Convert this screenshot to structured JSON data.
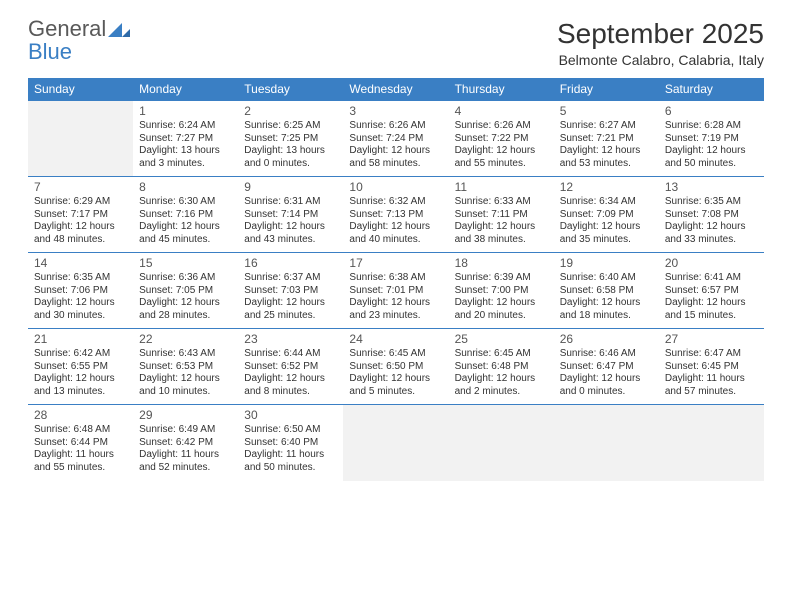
{
  "logo": {
    "general": "General",
    "blue": "Blue"
  },
  "header": {
    "month_title": "September 2025",
    "location": "Belmonte Calabro, Calabria, Italy"
  },
  "colors": {
    "header_bg": "#3a7fc4",
    "header_text": "#ffffff",
    "cell_border": "#3a7fc4",
    "empty_bg": "#f2f2f2",
    "body_text": "#333333",
    "logo_gray": "#595959",
    "logo_blue": "#3a7fc4"
  },
  "weekdays": [
    "Sunday",
    "Monday",
    "Tuesday",
    "Wednesday",
    "Thursday",
    "Friday",
    "Saturday"
  ],
  "weeks": [
    [
      null,
      {
        "day": "1",
        "sunrise": "Sunrise: 6:24 AM",
        "sunset": "Sunset: 7:27 PM",
        "d1": "Daylight: 13 hours",
        "d2": "and 3 minutes."
      },
      {
        "day": "2",
        "sunrise": "Sunrise: 6:25 AM",
        "sunset": "Sunset: 7:25 PM",
        "d1": "Daylight: 13 hours",
        "d2": "and 0 minutes."
      },
      {
        "day": "3",
        "sunrise": "Sunrise: 6:26 AM",
        "sunset": "Sunset: 7:24 PM",
        "d1": "Daylight: 12 hours",
        "d2": "and 58 minutes."
      },
      {
        "day": "4",
        "sunrise": "Sunrise: 6:26 AM",
        "sunset": "Sunset: 7:22 PM",
        "d1": "Daylight: 12 hours",
        "d2": "and 55 minutes."
      },
      {
        "day": "5",
        "sunrise": "Sunrise: 6:27 AM",
        "sunset": "Sunset: 7:21 PM",
        "d1": "Daylight: 12 hours",
        "d2": "and 53 minutes."
      },
      {
        "day": "6",
        "sunrise": "Sunrise: 6:28 AM",
        "sunset": "Sunset: 7:19 PM",
        "d1": "Daylight: 12 hours",
        "d2": "and 50 minutes."
      }
    ],
    [
      {
        "day": "7",
        "sunrise": "Sunrise: 6:29 AM",
        "sunset": "Sunset: 7:17 PM",
        "d1": "Daylight: 12 hours",
        "d2": "and 48 minutes."
      },
      {
        "day": "8",
        "sunrise": "Sunrise: 6:30 AM",
        "sunset": "Sunset: 7:16 PM",
        "d1": "Daylight: 12 hours",
        "d2": "and 45 minutes."
      },
      {
        "day": "9",
        "sunrise": "Sunrise: 6:31 AM",
        "sunset": "Sunset: 7:14 PM",
        "d1": "Daylight: 12 hours",
        "d2": "and 43 minutes."
      },
      {
        "day": "10",
        "sunrise": "Sunrise: 6:32 AM",
        "sunset": "Sunset: 7:13 PM",
        "d1": "Daylight: 12 hours",
        "d2": "and 40 minutes."
      },
      {
        "day": "11",
        "sunrise": "Sunrise: 6:33 AM",
        "sunset": "Sunset: 7:11 PM",
        "d1": "Daylight: 12 hours",
        "d2": "and 38 minutes."
      },
      {
        "day": "12",
        "sunrise": "Sunrise: 6:34 AM",
        "sunset": "Sunset: 7:09 PM",
        "d1": "Daylight: 12 hours",
        "d2": "and 35 minutes."
      },
      {
        "day": "13",
        "sunrise": "Sunrise: 6:35 AM",
        "sunset": "Sunset: 7:08 PM",
        "d1": "Daylight: 12 hours",
        "d2": "and 33 minutes."
      }
    ],
    [
      {
        "day": "14",
        "sunrise": "Sunrise: 6:35 AM",
        "sunset": "Sunset: 7:06 PM",
        "d1": "Daylight: 12 hours",
        "d2": "and 30 minutes."
      },
      {
        "day": "15",
        "sunrise": "Sunrise: 6:36 AM",
        "sunset": "Sunset: 7:05 PM",
        "d1": "Daylight: 12 hours",
        "d2": "and 28 minutes."
      },
      {
        "day": "16",
        "sunrise": "Sunrise: 6:37 AM",
        "sunset": "Sunset: 7:03 PM",
        "d1": "Daylight: 12 hours",
        "d2": "and 25 minutes."
      },
      {
        "day": "17",
        "sunrise": "Sunrise: 6:38 AM",
        "sunset": "Sunset: 7:01 PM",
        "d1": "Daylight: 12 hours",
        "d2": "and 23 minutes."
      },
      {
        "day": "18",
        "sunrise": "Sunrise: 6:39 AM",
        "sunset": "Sunset: 7:00 PM",
        "d1": "Daylight: 12 hours",
        "d2": "and 20 minutes."
      },
      {
        "day": "19",
        "sunrise": "Sunrise: 6:40 AM",
        "sunset": "Sunset: 6:58 PM",
        "d1": "Daylight: 12 hours",
        "d2": "and 18 minutes."
      },
      {
        "day": "20",
        "sunrise": "Sunrise: 6:41 AM",
        "sunset": "Sunset: 6:57 PM",
        "d1": "Daylight: 12 hours",
        "d2": "and 15 minutes."
      }
    ],
    [
      {
        "day": "21",
        "sunrise": "Sunrise: 6:42 AM",
        "sunset": "Sunset: 6:55 PM",
        "d1": "Daylight: 12 hours",
        "d2": "and 13 minutes."
      },
      {
        "day": "22",
        "sunrise": "Sunrise: 6:43 AM",
        "sunset": "Sunset: 6:53 PM",
        "d1": "Daylight: 12 hours",
        "d2": "and 10 minutes."
      },
      {
        "day": "23",
        "sunrise": "Sunrise: 6:44 AM",
        "sunset": "Sunset: 6:52 PM",
        "d1": "Daylight: 12 hours",
        "d2": "and 8 minutes."
      },
      {
        "day": "24",
        "sunrise": "Sunrise: 6:45 AM",
        "sunset": "Sunset: 6:50 PM",
        "d1": "Daylight: 12 hours",
        "d2": "and 5 minutes."
      },
      {
        "day": "25",
        "sunrise": "Sunrise: 6:45 AM",
        "sunset": "Sunset: 6:48 PM",
        "d1": "Daylight: 12 hours",
        "d2": "and 2 minutes."
      },
      {
        "day": "26",
        "sunrise": "Sunrise: 6:46 AM",
        "sunset": "Sunset: 6:47 PM",
        "d1": "Daylight: 12 hours",
        "d2": "and 0 minutes."
      },
      {
        "day": "27",
        "sunrise": "Sunrise: 6:47 AM",
        "sunset": "Sunset: 6:45 PM",
        "d1": "Daylight: 11 hours",
        "d2": "and 57 minutes."
      }
    ],
    [
      {
        "day": "28",
        "sunrise": "Sunrise: 6:48 AM",
        "sunset": "Sunset: 6:44 PM",
        "d1": "Daylight: 11 hours",
        "d2": "and 55 minutes."
      },
      {
        "day": "29",
        "sunrise": "Sunrise: 6:49 AM",
        "sunset": "Sunset: 6:42 PM",
        "d1": "Daylight: 11 hours",
        "d2": "and 52 minutes."
      },
      {
        "day": "30",
        "sunrise": "Sunrise: 6:50 AM",
        "sunset": "Sunset: 6:40 PM",
        "d1": "Daylight: 11 hours",
        "d2": "and 50 minutes."
      },
      null,
      null,
      null,
      null
    ]
  ]
}
